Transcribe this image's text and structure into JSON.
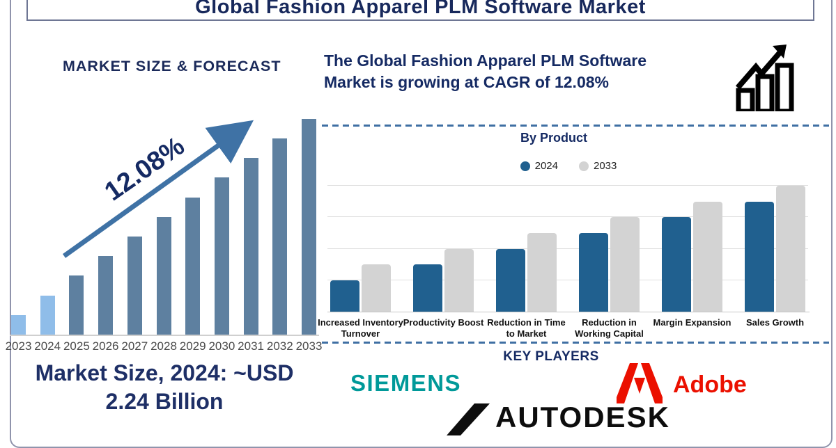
{
  "title": "Global Fashion Apparel PLM Software Market",
  "left": {
    "heading": "MARKET SIZE & FORECAST",
    "growth_label": "12.08%",
    "market_size_line1": "Market Size, 2024: ~USD",
    "market_size_line2": "2.24 Billion"
  },
  "right": {
    "headline_line1": "The Global Fashion Apparel PLM Software",
    "headline_line2": "Market is growing at CAGR of 12.08%",
    "by_product_title": "By Product",
    "key_players_heading": "KEY PLAYERS",
    "players": {
      "siemens": "SIEMENS",
      "adobe": "Adobe",
      "autodesk": "AUTODESK"
    }
  },
  "colors": {
    "navy_text": "#152a63",
    "forecast_bar_highlight": "#8fbde9",
    "forecast_bar_base": "#5e80a0",
    "arrow_blue": "#3f72a5",
    "dashed_divider": "#3f6fa3",
    "product_bar_2024": "#20608f",
    "product_bar_2033": "#d3d3d3",
    "siemens_teal": "#009999",
    "adobe_red": "#eb1000",
    "autodesk_black": "#0d0d0d"
  },
  "chart_data": [
    {
      "type": "bar",
      "title": "MARKET SIZE & FORECAST",
      "categories": [
        "2023",
        "2024",
        "2025",
        "2026",
        "2027",
        "2028",
        "2029",
        "2030",
        "2031",
        "2032",
        "2033"
      ],
      "values": [
        1,
        2,
        3,
        4,
        5,
        6,
        7,
        8,
        9,
        10,
        11
      ],
      "value_note": "relative heights; no numeric axis shown in figure",
      "annotation": "12.08% CAGR arrow",
      "highlight_categories": [
        "2023",
        "2024"
      ],
      "highlight_color": "#8fbde9",
      "base_color": "#5e80a0",
      "xlabel": "",
      "ylabel": "",
      "grid": false
    },
    {
      "type": "bar",
      "title": "By Product",
      "categories": [
        "Increased Inventory Turnover",
        "Productivity Boost",
        "Reduction in Time to Market",
        "Reduction in Working Capital",
        "Margin Expansion",
        "Sales Growth"
      ],
      "series": [
        {
          "name": "2024",
          "color": "#20608f",
          "values": [
            1,
            1.5,
            2,
            2.5,
            3,
            3.5
          ]
        },
        {
          "name": "2033",
          "color": "#d3d3d3",
          "values": [
            1.5,
            2,
            2.5,
            3,
            3.5,
            4
          ]
        }
      ],
      "value_note": "relative heights in gridline units; no numeric axis shown",
      "ylim": [
        0,
        4.3
      ],
      "grid": true,
      "legend_position": "top"
    }
  ]
}
